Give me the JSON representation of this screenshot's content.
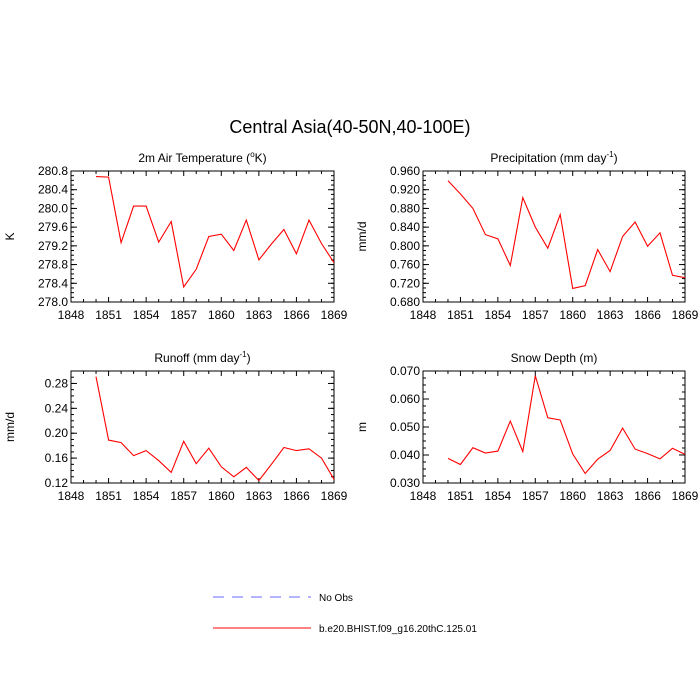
{
  "figure_title": "Central Asia(40-50N,40-100E)",
  "legend": {
    "entries": [
      {
        "label": "No Obs",
        "color": "#6a6aff",
        "dashed": true
      },
      {
        "label": "b.e20.BHIST.f09_g16.20thC.125.01",
        "color": "#ff0000",
        "dashed": false
      }
    ]
  },
  "chart_data": [
    {
      "type": "line",
      "title": "2m Air Temperature (°K)",
      "title_parts": [
        "2m Air Temperature (",
        "o",
        "K)"
      ],
      "xlabel": "",
      "ylabel": "K",
      "xlim": [
        1848,
        1869
      ],
      "ylim": [
        278.0,
        280.8
      ],
      "xticks": [
        1848,
        1851,
        1854,
        1857,
        1860,
        1863,
        1866,
        1869
      ],
      "yticks": [
        "278.0",
        "278.4",
        "278.8",
        "279.2",
        "279.6",
        "280.0",
        "280.4",
        "280.8"
      ],
      "grid": false,
      "series": [
        {
          "color": "#ff0000",
          "x": [
            1850,
            1851,
            1852,
            1853,
            1854,
            1855,
            1856,
            1857,
            1858,
            1859,
            1860,
            1861,
            1862,
            1863,
            1864,
            1865,
            1866,
            1867,
            1868,
            1869
          ],
          "values": [
            280.68,
            280.67,
            279.27,
            280.05,
            280.05,
            279.28,
            279.72,
            278.32,
            278.7,
            279.4,
            279.45,
            279.1,
            279.75,
            278.9,
            279.24,
            279.55,
            279.03,
            279.75,
            279.25,
            278.84
          ]
        }
      ]
    },
    {
      "type": "line",
      "title": "Precipitation (mm day⁻¹)",
      "title_parts": [
        "Precipitation (mm day",
        "-1",
        ")"
      ],
      "xlabel": "",
      "ylabel": "mm/d",
      "xlim": [
        1848,
        1869
      ],
      "ylim": [
        0.68,
        0.96
      ],
      "xticks": [
        1848,
        1851,
        1854,
        1857,
        1860,
        1863,
        1866,
        1869
      ],
      "yticks": [
        "0.680",
        "0.720",
        "0.760",
        "0.800",
        "0.840",
        "0.880",
        "0.920",
        "0.960"
      ],
      "grid": false,
      "series": [
        {
          "color": "#ff0000",
          "x": [
            1850,
            1851,
            1852,
            1853,
            1854,
            1855,
            1856,
            1857,
            1858,
            1859,
            1860,
            1861,
            1862,
            1863,
            1864,
            1865,
            1866,
            1867,
            1868,
            1869
          ],
          "values": [
            0.939,
            0.911,
            0.88,
            0.824,
            0.815,
            0.758,
            0.903,
            0.84,
            0.795,
            0.867,
            0.709,
            0.715,
            0.792,
            0.745,
            0.82,
            0.851,
            0.799,
            0.828,
            0.737,
            0.732
          ]
        }
      ]
    },
    {
      "type": "line",
      "title": "Runoff (mm day⁻¹)",
      "title_parts": [
        "Runoff (mm day",
        "-1",
        ")"
      ],
      "xlabel": "",
      "ylabel": "mm/d",
      "xlim": [
        1848,
        1869
      ],
      "ylim": [
        0.12,
        0.3
      ],
      "xticks": [
        1848,
        1851,
        1854,
        1857,
        1860,
        1863,
        1866,
        1869
      ],
      "yticks": [
        "0.12",
        "0.16",
        "0.20",
        "0.24",
        "0.28"
      ],
      "ytick_values": [
        0.12,
        0.16,
        0.2,
        0.24,
        0.28
      ],
      "grid": false,
      "series": [
        {
          "color": "#ff0000",
          "x": [
            1850,
            1851,
            1852,
            1853,
            1854,
            1855,
            1856,
            1857,
            1858,
            1859,
            1860,
            1861,
            1862,
            1863,
            1864,
            1865,
            1866,
            1867,
            1868,
            1869
          ],
          "values": [
            0.291,
            0.189,
            0.185,
            0.164,
            0.172,
            0.156,
            0.137,
            0.187,
            0.151,
            0.176,
            0.146,
            0.13,
            0.145,
            0.124,
            0.15,
            0.177,
            0.172,
            0.175,
            0.16,
            0.126
          ]
        }
      ]
    },
    {
      "type": "line",
      "title": "Snow Depth (m)",
      "title_parts": [
        "Snow Depth (m)",
        "",
        ""
      ],
      "xlabel": "",
      "ylabel": "m",
      "xlim": [
        1848,
        1869
      ],
      "ylim": [
        0.03,
        0.07
      ],
      "xticks": [
        1848,
        1851,
        1854,
        1857,
        1860,
        1863,
        1866,
        1869
      ],
      "yticks": [
        "0.030",
        "0.040",
        "0.050",
        "0.060",
        "0.070"
      ],
      "grid": false,
      "series": [
        {
          "color": "#ff0000",
          "x": [
            1850,
            1851,
            1852,
            1853,
            1854,
            1855,
            1856,
            1857,
            1858,
            1859,
            1860,
            1861,
            1862,
            1863,
            1864,
            1865,
            1866,
            1867,
            1868,
            1869
          ],
          "values": [
            0.0388,
            0.0366,
            0.0426,
            0.0407,
            0.0414,
            0.0521,
            0.0412,
            0.0683,
            0.0533,
            0.0525,
            0.0404,
            0.0334,
            0.0385,
            0.0416,
            0.0496,
            0.0421,
            0.0405,
            0.0386,
            0.0424,
            0.0402
          ]
        }
      ]
    }
  ]
}
